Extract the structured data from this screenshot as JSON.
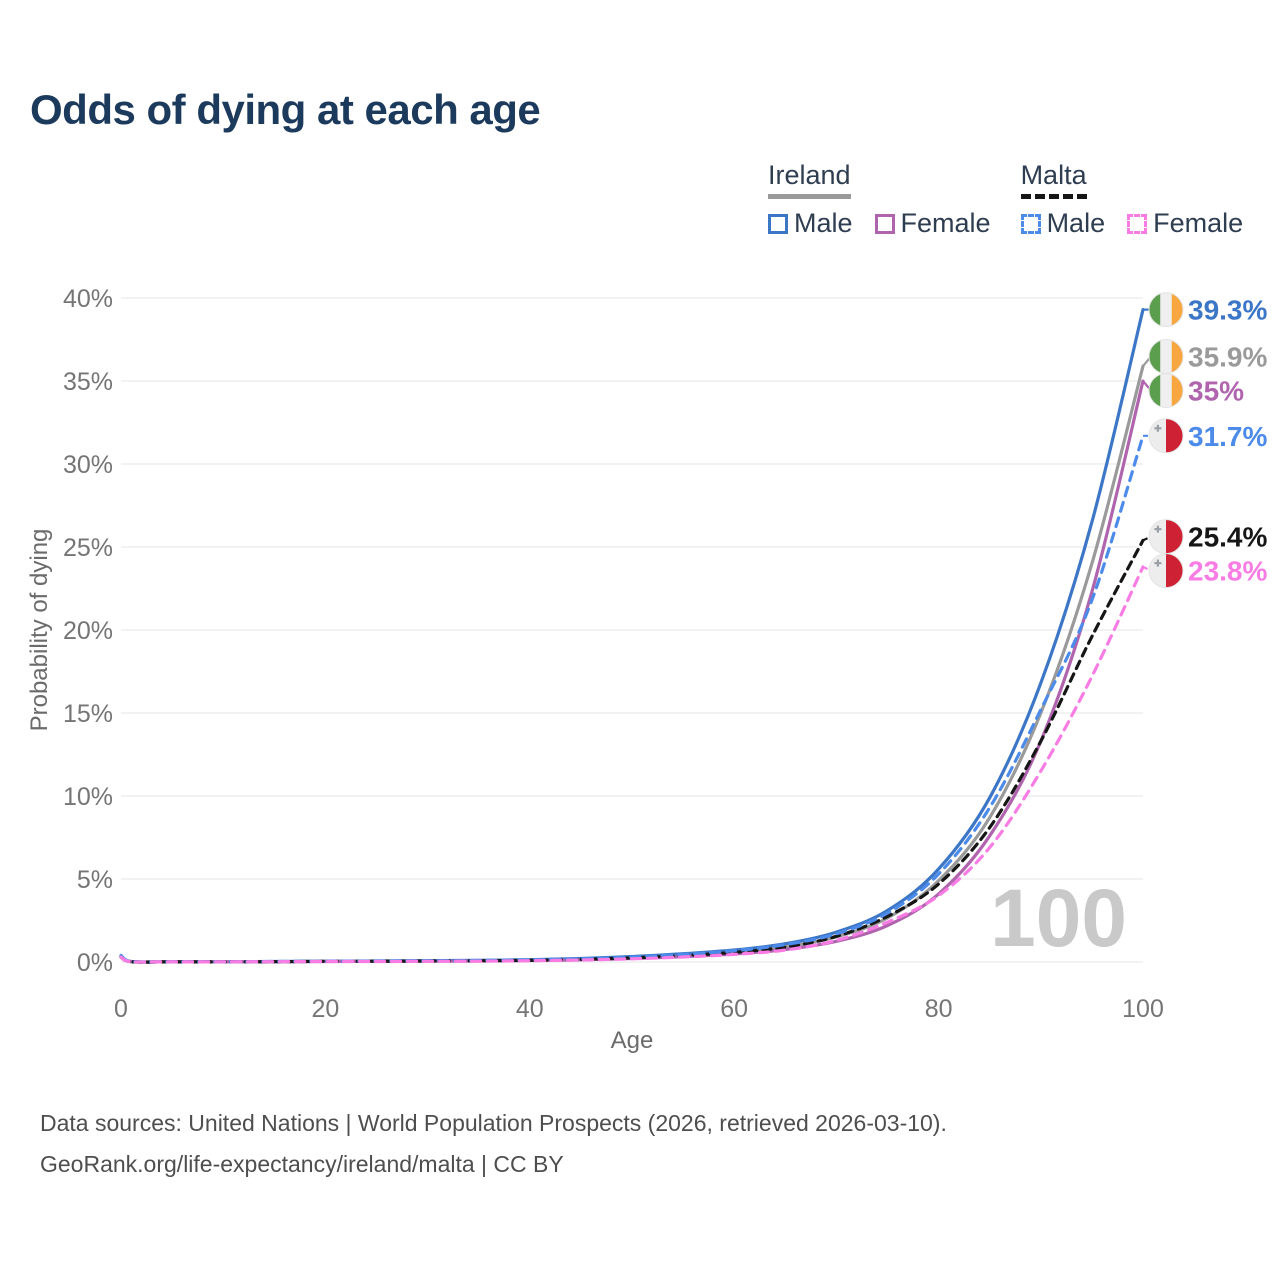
{
  "title": "Odds of dying at each age",
  "legend": {
    "groups": [
      {
        "country": "Ireland",
        "line_style": "solid",
        "underline_color": "#9a9a9a",
        "items": [
          {
            "label": "Male",
            "color": "#3c76c6",
            "dashed": false
          },
          {
            "label": "Female",
            "color": "#b064ae",
            "dashed": false
          }
        ]
      },
      {
        "country": "Malta",
        "line_style": "dashed",
        "underline_color": "#161616",
        "items": [
          {
            "label": "Male",
            "color": "#4d8bea",
            "dashed": true
          },
          {
            "label": "Female",
            "color": "#f97ce4",
            "dashed": true
          }
        ]
      }
    ]
  },
  "chart_data": {
    "type": "line",
    "title": "Odds of dying at each age",
    "xlabel": "Age",
    "ylabel": "Probability of dying",
    "xlim": [
      0,
      100
    ],
    "ylim": [
      0,
      40
    ],
    "grid": true,
    "x_ticks": [
      0,
      20,
      40,
      60,
      80,
      100
    ],
    "y_tick_values": [
      0,
      5,
      10,
      15,
      20,
      25,
      30,
      35,
      40
    ],
    "y_tick_labels": [
      "0%",
      "5%",
      "10%",
      "15%",
      "20%",
      "25%",
      "30%",
      "35%",
      "40%"
    ],
    "watermark": "100",
    "ages": [
      0,
      1,
      5,
      10,
      15,
      20,
      25,
      30,
      35,
      40,
      45,
      50,
      55,
      60,
      65,
      70,
      75,
      80,
      85,
      90,
      95,
      100
    ],
    "series": [
      {
        "name": "Ireland Male",
        "country": "Ireland",
        "sex": "Male",
        "color": "#3c76c6",
        "dash": null,
        "flag": "ireland",
        "end_label": "39.3%",
        "end_value": 39.3,
        "values": [
          0.35,
          0.03,
          0.01,
          0.01,
          0.03,
          0.05,
          0.06,
          0.08,
          0.1,
          0.14,
          0.21,
          0.33,
          0.5,
          0.72,
          1.1,
          1.8,
          3.1,
          5.6,
          9.9,
          16.8,
          26.5,
          39.3
        ]
      },
      {
        "name": "Ireland Both sexes",
        "country": "Ireland",
        "sex": "Both",
        "color": "#9a9a9a",
        "dash": null,
        "flag": "ireland",
        "end_label": "35.9%",
        "end_value": 35.9,
        "values": [
          0.3,
          0.02,
          0.01,
          0.01,
          0.02,
          0.04,
          0.05,
          0.06,
          0.08,
          0.11,
          0.17,
          0.27,
          0.41,
          0.6,
          0.92,
          1.52,
          2.65,
          4.9,
          8.7,
          15.0,
          24.0,
          35.9
        ]
      },
      {
        "name": "Ireland Female",
        "country": "Ireland",
        "sex": "Female",
        "color": "#b064ae",
        "dash": null,
        "flag": "ireland",
        "end_label": "35%",
        "end_value": 35.0,
        "values": [
          0.28,
          0.02,
          0.01,
          0.01,
          0.02,
          0.03,
          0.04,
          0.05,
          0.06,
          0.09,
          0.13,
          0.21,
          0.32,
          0.48,
          0.75,
          1.25,
          2.2,
          4.1,
          7.6,
          13.3,
          22.3,
          35.0
        ]
      },
      {
        "name": "Malta Male",
        "country": "Malta",
        "sex": "Male",
        "color": "#4d8bea",
        "dash": "9 7",
        "flag": "malta",
        "end_label": "31.7%",
        "end_value": 31.7,
        "values": [
          0.4,
          0.03,
          0.01,
          0.01,
          0.03,
          0.05,
          0.06,
          0.07,
          0.09,
          0.13,
          0.19,
          0.3,
          0.46,
          0.68,
          1.05,
          1.7,
          2.95,
          5.3,
          9.3,
          15.2,
          21.8,
          31.7
        ]
      },
      {
        "name": "Malta Both sexes",
        "country": "Malta",
        "sex": "Both",
        "color": "#161616",
        "dash": "8 6",
        "flag": "malta",
        "end_label": "25.4%",
        "end_value": 25.4,
        "values": [
          0.35,
          0.02,
          0.01,
          0.01,
          0.02,
          0.04,
          0.05,
          0.06,
          0.08,
          0.1,
          0.16,
          0.25,
          0.39,
          0.58,
          0.9,
          1.55,
          2.75,
          4.7,
          8.1,
          13.3,
          19.6,
          25.4
        ]
      },
      {
        "name": "Malta Female",
        "country": "Malta",
        "sex": "Female",
        "color": "#f97ce4",
        "dash": "9 7",
        "flag": "malta",
        "end_label": "23.8%",
        "end_value": 23.8,
        "values": [
          0.3,
          0.02,
          0.01,
          0.01,
          0.02,
          0.03,
          0.03,
          0.04,
          0.05,
          0.08,
          0.12,
          0.19,
          0.3,
          0.46,
          0.72,
          1.3,
          2.4,
          4.0,
          6.9,
          11.5,
          17.2,
          23.8
        ]
      }
    ],
    "colors": {
      "grid": "#eaeaea",
      "tick_label": "#757575",
      "axis_title": "#6b6b6b",
      "watermark": "#c9c9c9",
      "flag_ireland": [
        "#5b9e4d",
        "#efefef",
        "#f8a63f"
      ],
      "flag_malta_white": "#ededed",
      "flag_malta_red": "#ce2134",
      "flag_malta_cross": "#9aa0a6"
    }
  },
  "footer": {
    "line1": "Data sources: United Nations | World Population Prospects (2026, retrieved 2026-03-10).",
    "line2": "GeoRank.org/life-expectancy/ireland/malta | CC BY"
  }
}
